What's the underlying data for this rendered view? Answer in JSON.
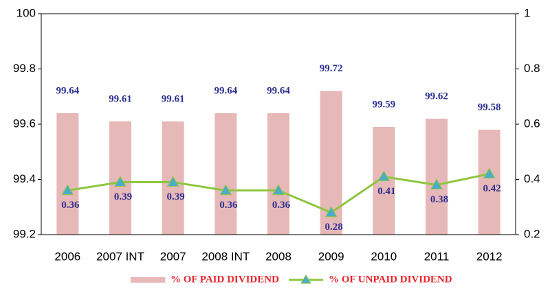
{
  "chart_data": {
    "type": "bar",
    "categories": [
      "2006",
      "2007 INT",
      "2007",
      "2008 INT",
      "2008",
      "2009",
      "2010",
      "2011",
      "2012"
    ],
    "series": [
      {
        "name": "% OF PAID DIVIDEND",
        "type": "bar",
        "color": "#e6b8b7",
        "values": [
          99.64,
          99.61,
          99.61,
          99.64,
          99.64,
          99.72,
          99.59,
          99.62,
          99.58
        ]
      },
      {
        "name": "% OF UNPAID DIVIDEND",
        "type": "line",
        "axis": "y2",
        "color": "#8dc63f",
        "marker_color": "#4bacc6",
        "values": [
          0.36,
          0.39,
          0.39,
          0.36,
          0.36,
          0.28,
          0.41,
          0.38,
          0.42
        ]
      }
    ],
    "ylim": [
      99.2,
      100
    ],
    "yticks": [
      99.2,
      99.4,
      99.6,
      99.8,
      100
    ],
    "y2lim": [
      0.2,
      1
    ],
    "y2ticks": [
      0.2,
      0.4,
      0.6,
      0.8,
      1
    ],
    "grid": false,
    "legend": "bottom"
  }
}
